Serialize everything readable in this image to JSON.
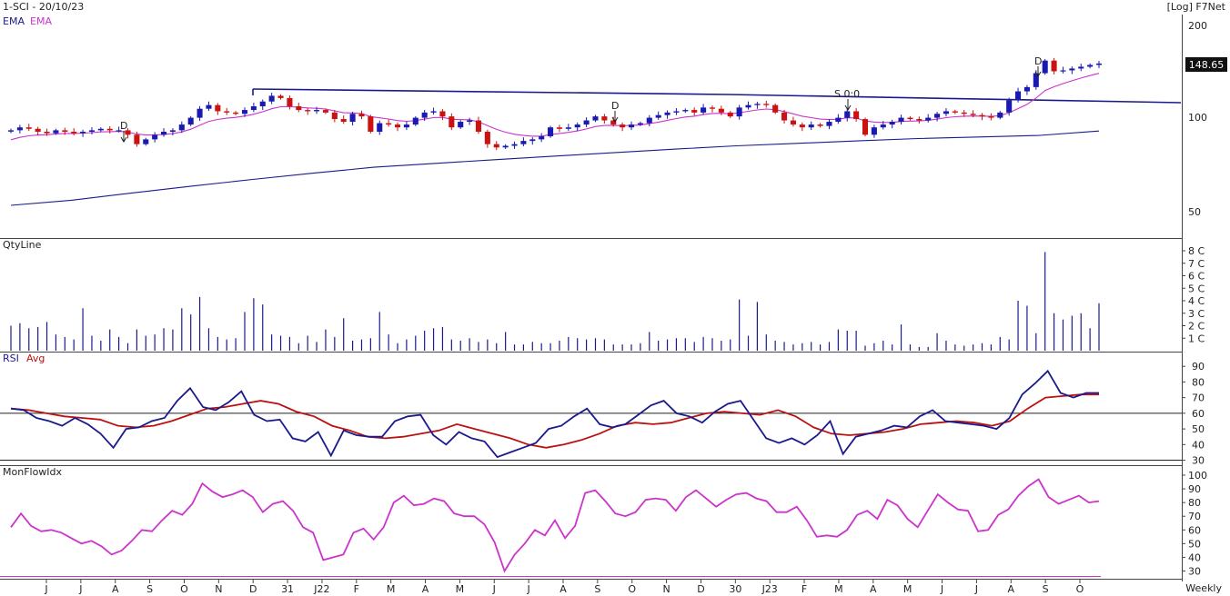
{
  "header": {
    "symbol_date": "1-SCI - 20/10/23",
    "right_label": "[Log] F7Net"
  },
  "colors": {
    "up_candle": "#1a1ab0",
    "down_candle": "#cc1111",
    "trendline": "#1a1a8c",
    "ema_short": "#cc33cc",
    "ema_long": "#1a1a8c",
    "volume": "#1a1a8c",
    "rsi": "#1a1a8c",
    "rsi_avg": "#bb1111",
    "mfi": "#cc33cc"
  },
  "chart_data": [
    {
      "type": "candlestick",
      "legend": [
        {
          "name": "EMA",
          "color": "#1a1a8c"
        },
        {
          "name": "EMA",
          "color": "#cc33cc"
        }
      ],
      "scale": "log",
      "ylim": [
        40,
        215
      ],
      "yticks": [
        200,
        100,
        50
      ],
      "last_price": "148.65",
      "annotations": [
        "D",
        "D",
        "S 0:0",
        "D"
      ],
      "x_labels": [
        "J",
        "J",
        "A",
        "S",
        "O",
        "N",
        "D",
        "31",
        "J22",
        "F",
        "M",
        "A",
        "M",
        "J",
        "J",
        "A",
        "S",
        "O",
        "N",
        "D",
        "30",
        "J23",
        "F",
        "M",
        "A",
        "M",
        "J",
        "J",
        "A",
        "S",
        "O"
      ],
      "x_axis_note": "Weekly",
      "close_series": [
        89,
        91,
        90,
        88,
        87,
        89,
        88,
        87,
        88,
        89,
        90,
        89,
        89,
        86,
        80,
        83,
        86,
        88,
        89,
        93,
        98,
        105,
        108,
        103,
        102,
        101,
        104,
        107,
        111,
        116,
        114,
        107,
        104,
        103,
        104,
        102,
        97,
        95,
        101,
        99,
        88,
        94,
        93,
        91,
        93,
        98,
        102,
        103,
        99,
        91,
        95,
        96,
        88,
        80,
        78,
        79,
        80,
        82,
        83,
        85,
        91,
        90,
        91,
        93,
        96,
        99,
        96,
        93,
        91,
        93,
        94,
        98,
        100,
        102,
        103,
        104,
        102,
        106,
        105,
        102,
        99,
        106,
        108,
        109,
        108,
        102,
        96,
        93,
        91,
        93,
        92,
        95,
        98,
        103,
        97,
        86,
        91,
        93,
        95,
        98,
        97,
        96,
        98,
        101,
        103,
        102,
        101,
        100,
        99,
        98,
        102,
        112,
        120,
        124,
        138,
        152,
        140,
        141,
        143,
        145,
        147,
        148.65
      ],
      "ema_long_series": [
        50,
        52,
        55,
        58,
        61,
        64,
        67,
        69,
        71,
        73,
        75,
        77,
        79,
        80.5,
        82,
        83.5,
        84.5,
        85.5,
        88.5
      ]
    },
    {
      "type": "bar",
      "title": "QtyLine",
      "yticks": [
        "8 C",
        "7 C",
        "6 C",
        "5 C",
        "4 C",
        "3 C",
        "2 C",
        "1 C"
      ],
      "ylim": [
        0,
        8
      ],
      "values": [
        2.0,
        2.2,
        1.8,
        1.9,
        2.3,
        1.3,
        1.1,
        0.9,
        3.4,
        1.2,
        0.8,
        1.7,
        1.1,
        0.6,
        1.7,
        1.2,
        1.3,
        1.8,
        1.7,
        3.4,
        2.9,
        4.3,
        1.8,
        1.1,
        0.9,
        1.0,
        3.1,
        4.2,
        3.7,
        1.3,
        1.2,
        1.1,
        0.6,
        1.2,
        0.7,
        1.7,
        1.1,
        2.6,
        0.8,
        0.9,
        1.0,
        3.1,
        1.3,
        0.6,
        0.9,
        1.2,
        1.6,
        1.8,
        1.9,
        0.9,
        0.8,
        1.0,
        0.7,
        0.9,
        0.6,
        1.5,
        0.5,
        0.5,
        0.7,
        0.6,
        0.6,
        0.8,
        1.1,
        1.0,
        0.9,
        1.0,
        0.9,
        0.5,
        0.5,
        0.5,
        0.6,
        1.5,
        0.8,
        0.9,
        1.0,
        1.0,
        0.7,
        1.1,
        1.0,
        0.8,
        0.9,
        4.1,
        1.2,
        3.9,
        1.3,
        0.8,
        0.7,
        0.5,
        0.6,
        0.7,
        0.5,
        0.7,
        1.7,
        1.6,
        1.6,
        0.4,
        0.6,
        0.8,
        0.5,
        2.1,
        0.5,
        0.3,
        0.3,
        1.4,
        0.8,
        0.5,
        0.4,
        0.5,
        0.6,
        0.5,
        1.1,
        0.9,
        4.0,
        3.6,
        1.4,
        7.9,
        3.0,
        2.5,
        2.8,
        3.0,
        1.8,
        3.8
      ]
    },
    {
      "type": "line",
      "legend": [
        {
          "name": "RSI",
          "color": "#1a1a8c"
        },
        {
          "name": "Avg",
          "color": "#bb1111"
        }
      ],
      "yticks": [
        90,
        80,
        70,
        60,
        50,
        40,
        30
      ],
      "ylim": [
        28,
        93
      ],
      "hlines": [
        60,
        30
      ],
      "series": [
        {
          "name": "RSI",
          "values": [
            63,
            62,
            57,
            55,
            52,
            57,
            53,
            47,
            38,
            50,
            51,
            55,
            57,
            68,
            76,
            64,
            62,
            67,
            74,
            59,
            55,
            56,
            44,
            42,
            48,
            33,
            49,
            46,
            45,
            45,
            55,
            58,
            59,
            46,
            40,
            48,
            44,
            42,
            32,
            35,
            38,
            41,
            50,
            52,
            58,
            63,
            53,
            51,
            53,
            59,
            65,
            68,
            60,
            58,
            54,
            61,
            66,
            68,
            56,
            44,
            41,
            44,
            40,
            46,
            55,
            34,
            45,
            47,
            49,
            52,
            51,
            58,
            62,
            55,
            54,
            53,
            52,
            50,
            57,
            72,
            79,
            87,
            73,
            70,
            73,
            73
          ]
        },
        {
          "name": "Avg",
          "values": [
            63,
            62,
            60,
            58,
            57,
            56,
            52,
            51,
            52,
            55,
            59,
            63,
            64,
            66,
            68,
            66,
            61,
            58,
            52,
            49,
            45,
            44,
            45,
            47,
            49,
            53,
            50,
            47,
            44,
            40,
            38,
            40,
            43,
            47,
            52,
            54,
            53,
            54,
            57,
            60,
            61,
            60,
            59,
            62,
            58,
            51,
            47,
            46,
            47,
            48,
            50,
            53,
            54,
            55,
            54,
            52,
            55,
            63,
            70,
            71,
            72,
            72
          ]
        }
      ]
    },
    {
      "type": "line",
      "title": "MonFlowIdx",
      "yticks": [
        100,
        90,
        80,
        70,
        60,
        50,
        40,
        30
      ],
      "ylim": [
        25,
        102
      ],
      "series": [
        {
          "values": [
            62,
            72,
            63,
            59,
            60,
            58,
            54,
            50,
            52,
            48,
            42,
            45,
            52,
            60,
            59,
            67,
            74,
            71,
            79,
            94,
            88,
            84,
            86,
            89,
            84,
            73,
            79,
            81,
            74,
            62,
            58,
            38,
            40,
            42,
            58,
            61,
            53,
            62,
            80,
            85,
            78,
            79,
            83,
            81,
            72,
            70,
            70,
            64,
            51,
            30,
            42,
            50,
            60,
            56,
            67,
            54,
            63,
            87,
            89,
            81,
            72,
            70,
            73,
            82,
            83,
            82,
            74,
            84,
            89,
            83,
            77,
            82,
            86,
            87,
            83,
            81,
            73,
            73,
            77,
            67,
            55,
            56,
            55,
            60,
            71,
            74,
            68,
            82,
            78,
            68,
            62,
            74,
            86,
            80,
            75,
            74,
            59,
            60,
            71,
            75,
            85,
            92,
            97,
            84,
            79,
            82,
            85,
            80,
            81
          ]
        }
      ]
    }
  ]
}
